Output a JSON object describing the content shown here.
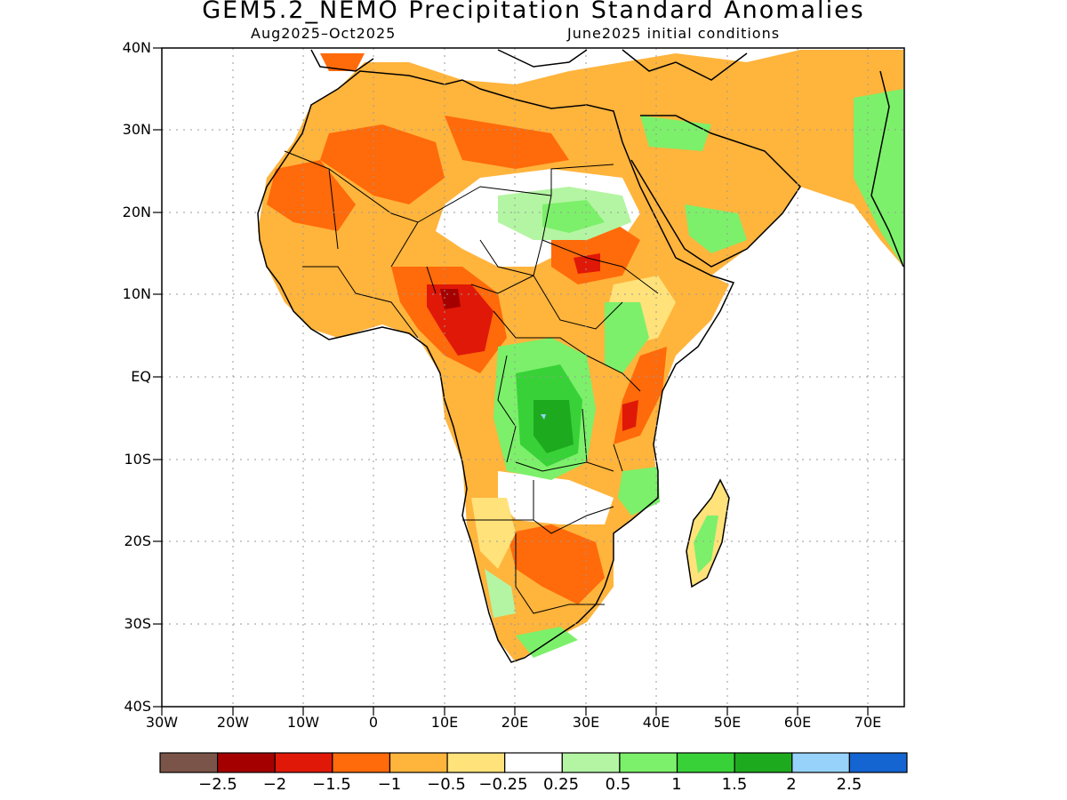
{
  "title": "GEM5.2_NEMO Precipitation Standard Anomalies",
  "subtitle_left": "Aug2025–Oct2025",
  "subtitle_right": "June2025 initial conditions",
  "lat_labels": [
    "40N",
    "30N",
    "20N",
    "10N",
    "EQ",
    "10S",
    "20S",
    "30S",
    "40S"
  ],
  "lon_labels": [
    "30W",
    "20W",
    "10W",
    "0",
    "10E",
    "20E",
    "30E",
    "40E",
    "50E",
    "60E",
    "70E"
  ],
  "colorbar": {
    "colors": [
      "#7a5448",
      "#a50000",
      "#e01808",
      "#ff6a0a",
      "#ffb43c",
      "#ffe27a",
      "#ffffff",
      "#b4f5a3",
      "#7cf06a",
      "#38d238",
      "#1eaa1e",
      "#96d2fa",
      "#1464d2"
    ],
    "labels": [
      "−2.5",
      "−2",
      "−1.5",
      "−1",
      "−0.5",
      "−0.25",
      "0.25",
      "0.5",
      "1",
      "1.5",
      "2",
      "2.5"
    ]
  },
  "map_extent": {
    "lon": [
      -30,
      75
    ],
    "lat": [
      -40,
      40
    ]
  }
}
